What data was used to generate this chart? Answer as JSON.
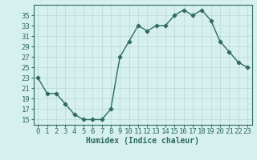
{
  "x": [
    0,
    1,
    2,
    3,
    4,
    5,
    6,
    7,
    8,
    9,
    10,
    11,
    12,
    13,
    14,
    15,
    16,
    17,
    18,
    19,
    20,
    21,
    22,
    23
  ],
  "y": [
    23,
    20,
    20,
    18,
    16,
    15,
    15,
    15,
    17,
    27,
    30,
    33,
    32,
    33,
    33,
    35,
    36,
    35,
    36,
    34,
    30,
    28,
    26,
    25
  ],
  "line_color": "#2e6b5e",
  "marker": "D",
  "bg_color": "#d6f0ef",
  "grid_color": "#b8d8d5",
  "xlabel": "Humidex (Indice chaleur)",
  "ylabel_ticks": [
    15,
    17,
    19,
    21,
    23,
    25,
    27,
    29,
    31,
    33,
    35
  ],
  "xlim": [
    -0.5,
    23.5
  ],
  "ylim": [
    14,
    37
  ],
  "tick_label_color": "#2e6b5e",
  "axis_color": "#2e6b5e",
  "xlabel_color": "#2e6b5e",
  "xlabel_fontsize": 7,
  "tick_fontsize": 6.5,
  "markersize": 2.5,
  "linewidth": 1.0
}
